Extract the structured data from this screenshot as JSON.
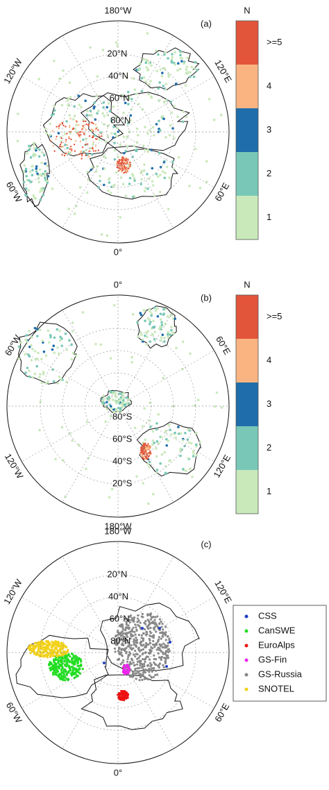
{
  "panels": [
    {
      "label": "(a)",
      "meridian_labels": [
        "180°W",
        "120°W",
        "60°W",
        "0°",
        "60°E",
        "120°E"
      ],
      "parallel_labels": [
        "20°N",
        "40°N",
        "60°N",
        "80°N"
      ],
      "colorbar": {
        "title": "N",
        "labels": [
          ">=5",
          "4",
          "3",
          "2",
          "1"
        ],
        "colors": [
          "#e2553b",
          "#f9b482",
          "#1f6dab",
          "#79c8b7",
          "#c9e9bb"
        ]
      }
    },
    {
      "label": "(b)",
      "meridian_labels": [
        "0°",
        "60°E",
        "120°E",
        "180°W",
        "120°W",
        "60°W"
      ],
      "parallel_labels": [
        "80°S",
        "60°S",
        "40°S",
        "20°S"
      ],
      "colorbar": {
        "title": "N",
        "labels": [
          ">=5",
          "4",
          "3",
          "2",
          "1"
        ],
        "colors": [
          "#e2553b",
          "#f9b482",
          "#1f6dab",
          "#79c8b7",
          "#c9e9bb"
        ]
      }
    },
    {
      "label": "(c)",
      "meridian_labels": [
        "180°W",
        "120°W",
        "60°W",
        "0°",
        "60°E",
        "120°E"
      ],
      "parallel_labels": [
        "20°N",
        "40°N",
        "60°N",
        "80°N"
      ],
      "legend": [
        {
          "name": "CSS",
          "color": "#1f3fc4"
        },
        {
          "name": "CanSWE",
          "color": "#22dd22"
        },
        {
          "name": "EuroAlps",
          "color": "#ee1111"
        },
        {
          "name": "GS-Fin",
          "color": "#ee22ee"
        },
        {
          "name": "GS-Russia",
          "color": "#888888"
        },
        {
          "name": "SNOTEL",
          "color": "#f2d21a"
        }
      ]
    }
  ]
}
